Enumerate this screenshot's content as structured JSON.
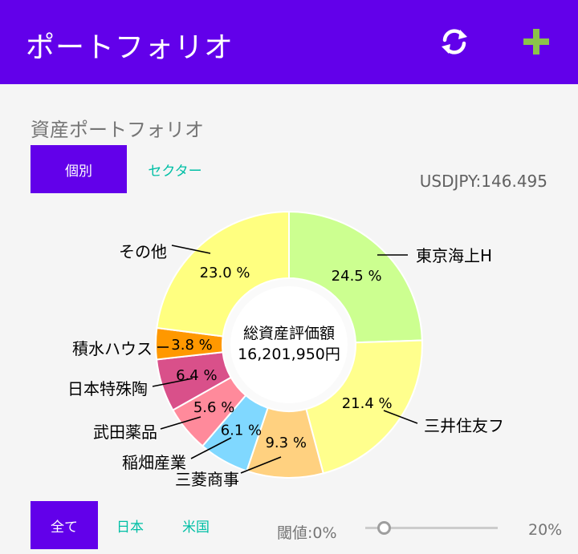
{
  "appbar": {
    "title": "ポートフォリオ",
    "refresh_icon": "refresh-icon",
    "add_icon": "plus-icon",
    "add_color": "#8bc34a"
  },
  "section": {
    "title": "資産ポートフォリオ"
  },
  "tabs": {
    "individual": "個別",
    "sector": "セクター"
  },
  "fx_rate": "USDJPY:146.495",
  "chart_data": {
    "type": "pie",
    "center_line1": "総資産評価額",
    "center_line2": "16,201,950円",
    "slices": [
      {
        "label": "東京海上H",
        "value": 24.5,
        "value_text": "24.5 %",
        "color": "#ccff90"
      },
      {
        "label": "三井住友フ",
        "value": 21.4,
        "value_text": "21.4 %",
        "color": "#ffff8d"
      },
      {
        "label": "三菱商事",
        "value": 9.3,
        "value_text": "9.3 %",
        "color": "#ffd180"
      },
      {
        "label": "稲畑産業",
        "value": 6.1,
        "value_text": "6.1 %",
        "color": "#80d8ff"
      },
      {
        "label": "武田薬品",
        "value": 5.6,
        "value_text": "5.6 %",
        "color": "#ff8a9b"
      },
      {
        "label": "日本特殊陶",
        "value": 6.4,
        "value_text": "6.4 %",
        "color": "#d9508a"
      },
      {
        "label": "積水ハウス",
        "value": 3.8,
        "value_text": "3.8 %",
        "color": "#ff9800"
      },
      {
        "label": "その他",
        "value": 23.0,
        "value_text": "23.0 %",
        "color": "#ffff80"
      }
    ]
  },
  "filters": {
    "all": "全て",
    "japan": "日本",
    "us": "米国"
  },
  "threshold": {
    "label": "閾値:0%",
    "max_label": "20%",
    "value": 0
  }
}
